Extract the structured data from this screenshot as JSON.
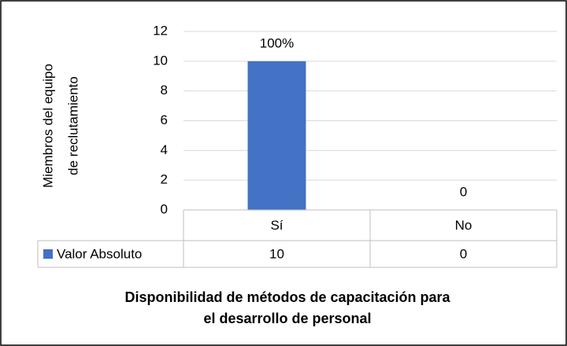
{
  "chart_data": {
    "type": "bar",
    "title": [
      "Disponibilidad de métodos de capacitación para",
      "el desarrollo de personal"
    ],
    "ylabel": [
      "Miembros del equipo",
      "de reclutamiento"
    ],
    "categories": [
      "Sí",
      "No"
    ],
    "series": [
      {
        "name": "Valor Absoluto",
        "color": "#4472c4",
        "values": [
          10,
          0
        ]
      }
    ],
    "data_labels": [
      "100%",
      "0"
    ],
    "ylim": [
      0,
      12
    ],
    "yticks": [
      0,
      2,
      4,
      6,
      8,
      10,
      12
    ],
    "grid": true,
    "data_table": true
  }
}
